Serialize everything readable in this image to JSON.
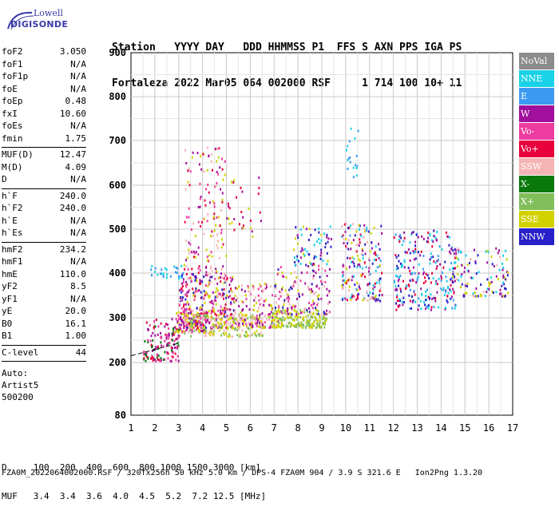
{
  "logo": {
    "line1": "Lowell",
    "line2": "DIGISONDE"
  },
  "header": {
    "labels": "Station   YYYY DAY   DDD HHMMSS P1  FFS S AXN PPS IGA PS",
    "values": "Fortaleza 2022 Mar05 064 002000 RSF     1 714 100 10+ 11"
  },
  "params": {
    "group1": [
      {
        "k": "foF2",
        "v": "3.050"
      },
      {
        "k": "foF1",
        "v": "N/A"
      },
      {
        "k": "foF1p",
        "v": "N/A"
      },
      {
        "k": "foE",
        "v": "N/A"
      },
      {
        "k": "foEp",
        "v": "0.48"
      },
      {
        "k": "fxI",
        "v": "10.60"
      },
      {
        "k": "foEs",
        "v": "N/A"
      },
      {
        "k": "fmin",
        "v": "1.75"
      }
    ],
    "group2": [
      {
        "k": "MUF(D)",
        "v": "12.47"
      },
      {
        "k": "M(D)",
        "v": "4.09"
      },
      {
        "k": "D",
        "v": "N/A"
      }
    ],
    "group3": [
      {
        "k": "h`F",
        "v": "240.0"
      },
      {
        "k": "h`F2",
        "v": "240.0"
      },
      {
        "k": "h`E",
        "v": "N/A"
      },
      {
        "k": "h`Es",
        "v": "N/A"
      }
    ],
    "group4": [
      {
        "k": "hmF2",
        "v": "234.2"
      },
      {
        "k": "hmF1",
        "v": "N/A"
      },
      {
        "k": "hmE",
        "v": "110.0"
      },
      {
        "k": "yF2",
        "v": "8.5"
      },
      {
        "k": "yF1",
        "v": "N/A"
      },
      {
        "k": "yE",
        "v": "20.0"
      },
      {
        "k": "B0",
        "v": "16.1"
      },
      {
        "k": "B1",
        "v": "1.00"
      }
    ],
    "group5": [
      {
        "k": "C-level",
        "v": "44"
      }
    ],
    "auto": [
      "Auto:",
      "Artist5",
      "500200"
    ]
  },
  "legend": [
    {
      "label": "NoVal",
      "color": "#8c8c8c"
    },
    {
      "label": "NNE",
      "color": "#1ad2e8"
    },
    {
      "label": "E",
      "color": "#3c9bf0"
    },
    {
      "label": "W",
      "color": "#a0109c"
    },
    {
      "label": "Vo-",
      "color": "#ec3ca0"
    },
    {
      "label": "Vo+",
      "color": "#e8003c"
    },
    {
      "label": "SSW",
      "color": "#f5b4b4"
    },
    {
      "label": "X-",
      "color": "#0a780a"
    },
    {
      "label": "X+",
      "color": "#82be5a"
    },
    {
      "label": "SSE",
      "color": "#d2d200"
    },
    {
      "label": "NNW",
      "color": "#2820c8"
    }
  ],
  "chart_data": {
    "type": "scatter",
    "title": "",
    "xlabel": "",
    "ylabel": "",
    "xlim": [
      1,
      17
    ],
    "ylim": [
      80,
      900
    ],
    "x_ticks": [
      "1",
      "2",
      "3",
      "4",
      "5",
      "6",
      "7",
      "8",
      "9",
      "10",
      "11",
      "12",
      "13",
      "14",
      "15",
      "16",
      "17"
    ],
    "y_ticks": [
      "900",
      "800",
      "700",
      "600",
      "500",
      "400",
      "300",
      "200",
      "80"
    ],
    "y_tick_values": [
      900,
      800,
      700,
      600,
      500,
      400,
      300,
      200,
      80
    ],
    "grid": true,
    "trace_line": [
      [
        1.0,
        215
      ],
      [
        3.0,
        243
      ]
    ],
    "clusters": [
      {
        "x": [
          1.5,
          3.0
        ],
        "y": [
          205,
          300
        ],
        "n": 140,
        "colors": [
          "#e8003c",
          "#a0109c",
          "#ec3ca0",
          "#0a780a"
        ]
      },
      {
        "x": [
          1.8,
          3.2
        ],
        "y": [
          390,
          420
        ],
        "n": 28,
        "colors": [
          "#3c9bf0",
          "#1ad2e8"
        ]
      },
      {
        "x": [
          2.8,
          4.2
        ],
        "y": [
          270,
          320
        ],
        "n": 110,
        "colors": [
          "#d2d200",
          "#a0109c",
          "#ec3ca0"
        ]
      },
      {
        "x": [
          3.0,
          5.3
        ],
        "y": [
          280,
          400
        ],
        "n": 320,
        "colors": [
          "#e8003c",
          "#ec3ca0",
          "#a0109c",
          "#d2d200",
          "#2820c8",
          "#f5b4b4"
        ]
      },
      {
        "x": [
          3.2,
          5.0
        ],
        "y": [
          400,
          690
        ],
        "n": 150,
        "colors": [
          "#a0109c",
          "#e8003c",
          "#d2d200",
          "#f5b4b4",
          "#ec3ca0"
        ]
      },
      {
        "x": [
          3.2,
          6.5
        ],
        "y": [
          260,
          310
        ],
        "n": 180,
        "colors": [
          "#d2d200",
          "#82be5a",
          "#f5b4b4"
        ]
      },
      {
        "x": [
          5.3,
          7.3
        ],
        "y": [
          280,
          380
        ],
        "n": 140,
        "colors": [
          "#d2d200",
          "#f5b4b4",
          "#ec3ca0",
          "#a0109c"
        ]
      },
      {
        "x": [
          5.0,
          6.5
        ],
        "y": [
          480,
          620
        ],
        "n": 30,
        "colors": [
          "#a0109c",
          "#d2d200",
          "#e8003c"
        ]
      },
      {
        "x": [
          6.8,
          9.2
        ],
        "y": [
          280,
          320
        ],
        "n": 170,
        "colors": [
          "#d2d200",
          "#82be5a"
        ]
      },
      {
        "x": [
          7.0,
          9.3
        ],
        "y": [
          310,
          420
        ],
        "n": 140,
        "colors": [
          "#ec3ca0",
          "#2820c8",
          "#d2d200",
          "#f5b4b4",
          "#a0109c"
        ]
      },
      {
        "x": [
          7.8,
          9.4
        ],
        "y": [
          420,
          510
        ],
        "n": 70,
        "colors": [
          "#2820c8",
          "#1ad2e8",
          "#a0109c",
          "#d2d200"
        ]
      },
      {
        "x": [
          9.8,
          11.5
        ],
        "y": [
          340,
          520
        ],
        "n": 200,
        "colors": [
          "#1ad2e8",
          "#3c9bf0",
          "#d2d200",
          "#f5b4b4",
          "#e8003c",
          "#2820c8",
          "#a0109c"
        ]
      },
      {
        "x": [
          10.0,
          10.5
        ],
        "y": [
          620,
          740
        ],
        "n": 18,
        "colors": [
          "#1ad2e8",
          "#3c9bf0"
        ]
      },
      {
        "x": [
          12.0,
          14.6
        ],
        "y": [
          320,
          500
        ],
        "n": 260,
        "colors": [
          "#2820c8",
          "#1ad2e8",
          "#3c9bf0",
          "#e8003c",
          "#a0109c"
        ]
      },
      {
        "x": [
          14.3,
          16.8
        ],
        "y": [
          350,
          460
        ],
        "n": 130,
        "colors": [
          "#a0109c",
          "#2820c8",
          "#f5b4b4",
          "#1ad2e8",
          "#d2d200"
        ]
      }
    ]
  },
  "bottom": {
    "dline": "D     100  200  400  600  800 1000 1500 3000 [km]",
    "mufline": "MUF   3.4  3.4  3.6  4.0  4.5  5.2  7.2 12.5 [MHz]"
  },
  "footer": "FZA0M_2022064002000.RSF / 320fx256h 50 kHz 5.0 km / DPS-4 FZA0M 904 / 3.9 S 321.6 E   Ion2Png 1.3.20"
}
